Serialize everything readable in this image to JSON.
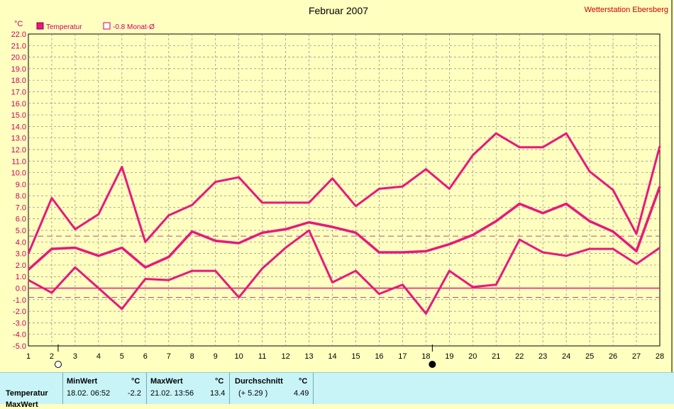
{
  "header": {
    "title": "Februar 2007",
    "station": "Wetterstation Ebersberg"
  },
  "legend": {
    "temperature_label": "Temperatur",
    "average_label": "-0.8 Monat-Ø"
  },
  "colors": {
    "series": "#e8187c",
    "average_line": "#b05090",
    "axis_text": "#cc0066",
    "grid": "#888888",
    "background": "#ffffc0",
    "panel": "#c8f4f8",
    "station_text": "#cc0000"
  },
  "chart_data": {
    "type": "line",
    "title": "Februar 2007",
    "ylabel": "°C",
    "xlabel": "",
    "ylim": [
      -5,
      22
    ],
    "ystep": 1,
    "grid": true,
    "legend_position": "top-left",
    "x": [
      1,
      2,
      3,
      4,
      5,
      6,
      7,
      8,
      9,
      10,
      11,
      12,
      13,
      14,
      15,
      16,
      17,
      18,
      19,
      20,
      21,
      22,
      23,
      24,
      25,
      26,
      27,
      28
    ],
    "y_tick_labels": [
      "22.0",
      "21.0",
      "20.0",
      "19.0",
      "18.0",
      "17.0",
      "16.0",
      "15.0",
      "14.0",
      "13.0",
      "12.0",
      "11.0",
      "10.0",
      "9.0",
      "8.0",
      "7.0",
      "6.0",
      "5.0",
      "4.0",
      "3.0",
      "2.0",
      "1.0",
      "0.0",
      "-1.0",
      "-2.0",
      "-3.0",
      "-4.0",
      "-5.0"
    ],
    "series": [
      {
        "role": "max",
        "values": [
          3.0,
          7.8,
          5.1,
          6.4,
          10.5,
          4.0,
          6.3,
          7.2,
          9.2,
          9.6,
          7.4,
          7.4,
          7.4,
          9.5,
          7.1,
          8.6,
          8.8,
          10.3,
          8.6,
          11.5,
          13.4,
          12.2,
          12.2,
          13.4,
          10.1,
          8.5,
          4.7,
          12.3
        ]
      },
      {
        "role": "mean",
        "values": [
          1.6,
          3.4,
          3.5,
          2.8,
          3.5,
          1.8,
          2.7,
          4.9,
          4.1,
          3.9,
          4.8,
          5.1,
          5.7,
          5.3,
          4.8,
          3.1,
          3.1,
          3.2,
          3.8,
          4.6,
          5.8,
          7.3,
          6.5,
          7.3,
          5.8,
          4.9,
          3.2,
          8.8
        ]
      },
      {
        "role": "min",
        "values": [
          0.7,
          -0.4,
          1.8,
          0.0,
          -1.8,
          0.8,
          0.7,
          1.5,
          1.5,
          -0.8,
          1.7,
          3.5,
          5.0,
          0.5,
          1.5,
          -0.5,
          0.3,
          -2.2,
          1.5,
          0.1,
          0.3,
          4.2,
          3.1,
          2.8,
          3.4,
          3.4,
          2.1,
          3.5
        ]
      }
    ],
    "reference_lines": [
      {
        "value": 4.5,
        "style": "dashed"
      },
      {
        "value": 0.0,
        "style": "solid"
      },
      {
        "value": -0.8,
        "style": "dashed"
      }
    ],
    "moon_phases": [
      {
        "day": 2,
        "phase": "full-moon"
      },
      {
        "day": 18,
        "phase": "new-moon"
      }
    ]
  },
  "stats": {
    "row_label": "Temperatur",
    "row_label_2": "MaxWert",
    "min_header": "MinWert",
    "min_unit": "°C",
    "min_time": "18.02.  06:52",
    "min_value": "-2.2",
    "max_header": "MaxWert",
    "max_unit": "°C",
    "max_time": "21.02.  13:56",
    "max_value": "13.4",
    "avg_header": "Durchschnitt",
    "avg_unit": "°C",
    "avg_delta": "(+ 5.29 )",
    "avg_value": "4.49"
  }
}
